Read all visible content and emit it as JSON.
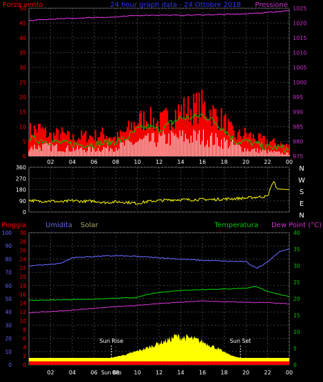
{
  "header": {
    "left_label": "Forza vento",
    "center_label": "24 hour graph data - 24 Ottobre 2018",
    "right_label": "Pressione"
  },
  "colors": {
    "wind_red": "#ff0000",
    "gust_green": "#00cc00",
    "calm_white": "#ffffff",
    "pressure": "#cc33cc",
    "direction": "#ffff00",
    "humidity": "#6666ff",
    "temperature": "#00cc00",
    "dewpoint": "#cc33cc",
    "solar": "#ffff00",
    "rain": "#ff0000",
    "grid": "#404040",
    "sunline": "#ffffff"
  },
  "x_ticks": [
    "02",
    "04",
    "06",
    "08",
    "10",
    "12",
    "14",
    "16",
    "18",
    "20",
    "22",
    "00"
  ],
  "chart_data": [
    {
      "type": "line",
      "name": "wind-pressure",
      "left_axis": {
        "label": "Forza vento",
        "ticks": [
          "0",
          "5",
          "10",
          "15",
          "20",
          "25",
          "30",
          "35",
          "40",
          "45",
          "50"
        ],
        "ylim": [
          0,
          50
        ]
      },
      "right_axis": {
        "label": "Pressione",
        "ticks": [
          "975",
          "980",
          "985",
          "990",
          "995",
          "1000",
          "1005",
          "1010",
          "1015",
          "1020",
          "1025"
        ],
        "ylim": [
          975,
          1025
        ]
      },
      "x_hours": [
        0,
        24
      ],
      "wind_max_profile": [
        [
          0,
          10
        ],
        [
          1,
          11
        ],
        [
          2,
          8
        ],
        [
          3,
          9
        ],
        [
          4,
          7
        ],
        [
          5,
          8
        ],
        [
          6,
          8
        ],
        [
          7,
          9
        ],
        [
          8,
          7
        ],
        [
          9,
          10
        ],
        [
          10,
          14
        ],
        [
          11,
          15
        ],
        [
          12,
          13
        ],
        [
          13,
          16
        ],
        [
          14,
          18
        ],
        [
          15,
          19
        ],
        [
          16,
          20
        ],
        [
          17,
          17
        ],
        [
          18,
          14
        ],
        [
          19,
          8
        ],
        [
          20,
          9
        ],
        [
          21,
          7
        ],
        [
          22,
          6
        ],
        [
          23,
          5
        ],
        [
          24,
          4
        ]
      ],
      "gust_profile": [
        [
          0,
          6
        ],
        [
          2,
          5
        ],
        [
          4,
          4
        ],
        [
          6,
          4
        ],
        [
          8,
          5
        ],
        [
          9,
          6
        ],
        [
          10,
          9
        ],
        [
          11,
          10
        ],
        [
          12,
          9
        ],
        [
          13,
          11
        ],
        [
          14,
          13
        ],
        [
          15,
          13
        ],
        [
          16,
          14
        ],
        [
          17,
          12
        ],
        [
          18,
          9
        ],
        [
          19,
          5
        ],
        [
          20,
          5
        ],
        [
          21,
          4
        ],
        [
          22,
          3
        ],
        [
          23,
          3
        ],
        [
          24,
          2
        ]
      ],
      "calm_profile": [
        [
          0,
          4
        ],
        [
          2,
          4
        ],
        [
          4,
          3
        ],
        [
          6,
          3
        ],
        [
          8,
          4
        ],
        [
          10,
          6
        ],
        [
          12,
          7
        ],
        [
          14,
          8
        ],
        [
          16,
          8
        ],
        [
          18,
          6
        ],
        [
          20,
          3
        ],
        [
          22,
          2
        ],
        [
          24,
          1
        ]
      ],
      "pressure": [
        [
          0,
          1020.8
        ],
        [
          2,
          1021.3
        ],
        [
          4,
          1021.6
        ],
        [
          6,
          1021.9
        ],
        [
          8,
          1022.0
        ],
        [
          10,
          1022.6
        ],
        [
          12,
          1022.7
        ],
        [
          14,
          1022.6
        ],
        [
          16,
          1022.8
        ],
        [
          18,
          1022.9
        ],
        [
          20,
          1023.1
        ],
        [
          22,
          1023.6
        ],
        [
          24,
          1024.2
        ]
      ]
    },
    {
      "type": "line",
      "name": "wind-direction",
      "right_axis": {
        "ticks": [
          "N",
          "W",
          "S",
          "E",
          "N"
        ]
      },
      "left_axis": {
        "ticks": [
          "360",
          "270",
          "180",
          "90",
          "0"
        ],
        "ylim": [
          0,
          360
        ]
      },
      "direction": [
        [
          0,
          95
        ],
        [
          1,
          85
        ],
        [
          2,
          90
        ],
        [
          3,
          80
        ],
        [
          4,
          92
        ],
        [
          5,
          85
        ],
        [
          6,
          88
        ],
        [
          7,
          75
        ],
        [
          8,
          82
        ],
        [
          9,
          78
        ],
        [
          10,
          70
        ],
        [
          11,
          85
        ],
        [
          12,
          92
        ],
        [
          13,
          98
        ],
        [
          14,
          100
        ],
        [
          15,
          98
        ],
        [
          16,
          102
        ],
        [
          17,
          100
        ],
        [
          18,
          105
        ],
        [
          19,
          108
        ],
        [
          20,
          112
        ],
        [
          21,
          120
        ],
        [
          22,
          125
        ],
        [
          22.4,
          220
        ],
        [
          22.6,
          250
        ],
        [
          22.8,
          195
        ],
        [
          23,
          185
        ],
        [
          24,
          180
        ]
      ]
    },
    {
      "type": "line",
      "name": "weather",
      "labels": {
        "rain": "Pioggia",
        "humidity": "Umidita",
        "solar": "Solar",
        "temperature": "Temperatura",
        "dewpoint": "Dew Point (°C)"
      },
      "humidity_axis": {
        "ticks": [
          "0",
          "10",
          "20",
          "30",
          "40",
          "50",
          "60",
          "70",
          "80",
          "90",
          "100"
        ],
        "ylim": [
          0,
          100
        ]
      },
      "temp_axis_left": {
        "ticks": [
          "0",
          "2",
          "4",
          "6",
          "8",
          "10",
          "12",
          "14",
          "16",
          "18",
          "20",
          "22",
          "24",
          "26",
          "28",
          "30"
        ],
        "ylim": [
          0,
          30
        ]
      },
      "temp_axis_right": {
        "ticks": [
          "0",
          "5",
          "10",
          "15",
          "20",
          "25",
          "30",
          "35",
          "40"
        ],
        "ylim": [
          0,
          40
        ]
      },
      "humidity": [
        [
          0,
          75
        ],
        [
          2,
          76
        ],
        [
          3,
          77
        ],
        [
          4,
          81
        ],
        [
          6,
          82
        ],
        [
          8,
          82.5
        ],
        [
          10,
          82
        ],
        [
          12,
          81
        ],
        [
          14,
          80
        ],
        [
          16,
          79
        ],
        [
          18,
          78.5
        ],
        [
          20,
          78
        ],
        [
          21,
          73
        ],
        [
          22,
          78
        ],
        [
          23,
          85
        ],
        [
          24,
          88
        ]
      ],
      "temperature": [
        [
          0,
          14.6
        ],
        [
          2,
          14.7
        ],
        [
          4,
          14.8
        ],
        [
          6,
          14.9
        ],
        [
          8,
          15.1
        ],
        [
          10,
          15.3
        ],
        [
          11,
          16
        ],
        [
          12,
          16.4
        ],
        [
          14,
          16.9
        ],
        [
          16,
          17.1
        ],
        [
          18,
          17.2
        ],
        [
          20,
          17.4
        ],
        [
          21,
          17.8
        ],
        [
          22,
          16.6
        ],
        [
          24,
          15.5
        ]
      ],
      "dewpoint": [
        [
          0,
          11.8
        ],
        [
          2,
          12.1
        ],
        [
          4,
          12.4
        ],
        [
          6,
          12.8
        ],
        [
          8,
          13.2
        ],
        [
          10,
          13.5
        ],
        [
          12,
          13.9
        ],
        [
          14,
          14.2
        ],
        [
          16,
          14.5
        ],
        [
          18,
          14.3
        ],
        [
          20,
          14.2
        ],
        [
          22,
          14.1
        ],
        [
          24,
          13.8
        ]
      ],
      "solar_profile": [
        [
          7.6,
          0
        ],
        [
          8,
          1
        ],
        [
          9,
          3
        ],
        [
          10,
          6
        ],
        [
          11,
          9
        ],
        [
          12,
          13
        ],
        [
          13,
          16
        ],
        [
          13.5,
          19
        ],
        [
          14,
          18
        ],
        [
          15,
          17
        ],
        [
          16,
          14
        ],
        [
          17,
          10
        ],
        [
          18,
          5
        ],
        [
          19,
          1
        ],
        [
          19.5,
          0
        ]
      ],
      "sun_rise_label": "Sun Rise",
      "sun_set_label": "Sun Set",
      "sun_rise_hour": 7.6,
      "sun_set_hour": 19.5,
      "sun_marker_label": "Sun Bro",
      "rain_total": 0
    }
  ]
}
